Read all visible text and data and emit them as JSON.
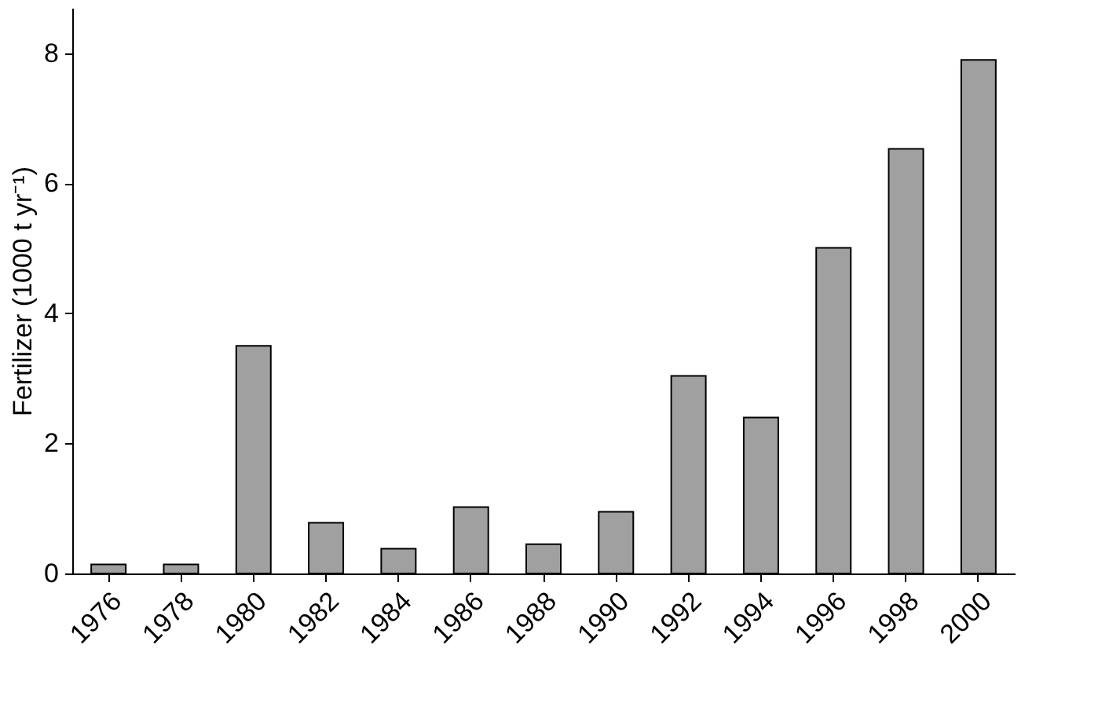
{
  "chart_data": {
    "type": "bar",
    "ylabel": "Fertilizer (1000 t yr⁻¹)",
    "categories": [
      "1976",
      "1978",
      "1980",
      "1982",
      "1984",
      "1986",
      "1988",
      "1990",
      "1992",
      "1994",
      "1996",
      "1998",
      "2000"
    ],
    "values": [
      0.14,
      0.14,
      3.5,
      0.78,
      0.38,
      1.02,
      0.45,
      0.95,
      3.04,
      2.4,
      5.01,
      6.53,
      7.9
    ],
    "color": "#a0a0a0",
    "ylim": [
      0,
      8.7
    ],
    "yticks": [
      0,
      2,
      4,
      6,
      8
    ],
    "grid": false
  }
}
